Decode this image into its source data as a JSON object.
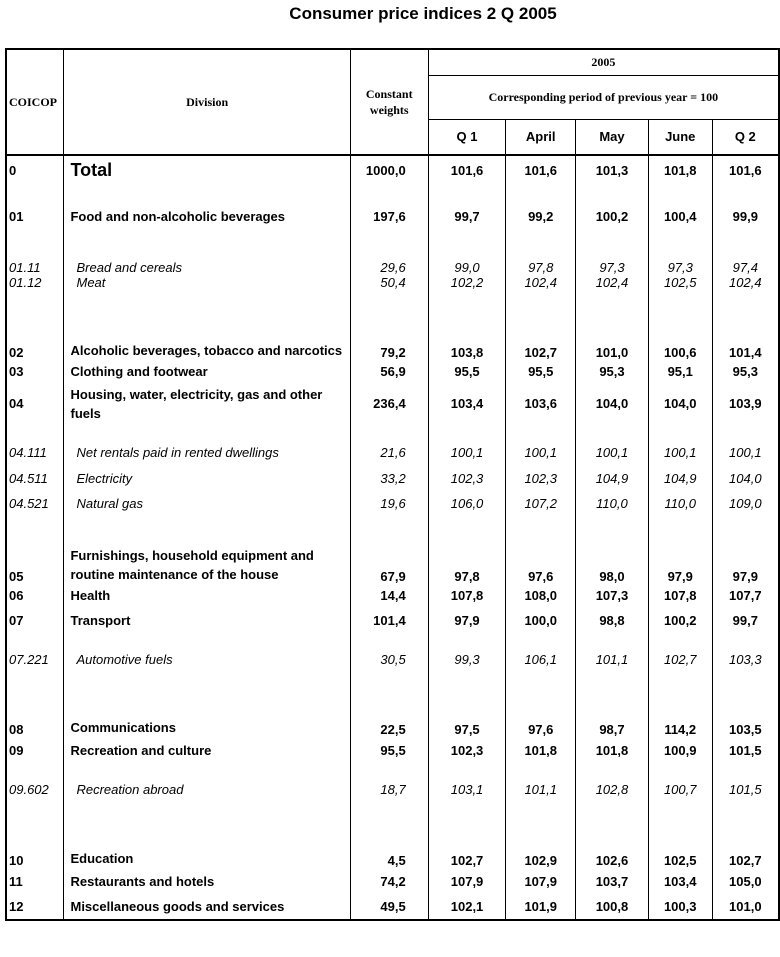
{
  "title": "Consumer price indices 2 Q 2005",
  "header": {
    "coicop": "COICOP",
    "division": "Division",
    "weights": "Constant weights",
    "year": "2005",
    "base": "Corresponding period of previous year = 100",
    "periods": [
      "Q 1",
      "April",
      "May",
      "June",
      "Q 2"
    ]
  },
  "rows": [
    {
      "code": "0",
      "name": "Total",
      "weight": "1000,0",
      "values": [
        "101,6",
        "101,6",
        "101,3",
        "101,8",
        "101,6"
      ]
    },
    {
      "code": "01",
      "name": "Food and non-alcoholic beverages",
      "weight": "197,6",
      "values": [
        "99,7",
        "99,2",
        "100,2",
        "100,4",
        "99,9"
      ]
    },
    {
      "code": "01.11",
      "name": "Bread and cereals",
      "weight": "29,6",
      "values": [
        "99,0",
        "97,8",
        "97,3",
        "97,3",
        "97,4"
      ]
    },
    {
      "code": "01.12",
      "name": "Meat",
      "weight": "50,4",
      "values": [
        "102,2",
        "102,4",
        "102,4",
        "102,5",
        "102,4"
      ]
    },
    {
      "code": "02",
      "name": "Alcoholic beverages, tobacco and narcotics",
      "weight": "79,2",
      "values": [
        "103,8",
        "102,7",
        "101,0",
        "100,6",
        "101,4"
      ]
    },
    {
      "code": "03",
      "name": "Clothing and footwear",
      "weight": "56,9",
      "values": [
        "95,5",
        "95,5",
        "95,3",
        "95,1",
        "95,3"
      ]
    },
    {
      "code": "04",
      "name": "Housing, water, electricity, gas and other fuels",
      "weight": "236,4",
      "values": [
        "103,4",
        "103,6",
        "104,0",
        "104,0",
        "103,9"
      ]
    },
    {
      "code": "04.111",
      "name": "Net rentals paid in rented dwellings",
      "weight": "21,6",
      "values": [
        "100,1",
        "100,1",
        "100,1",
        "100,1",
        "100,1"
      ]
    },
    {
      "code": "04.511",
      "name": "Electricity",
      "weight": "33,2",
      "values": [
        "102,3",
        "102,3",
        "104,9",
        "104,9",
        "104,0"
      ]
    },
    {
      "code": "04.521",
      "name": "Natural gas",
      "weight": "19,6",
      "values": [
        "106,0",
        "107,2",
        "110,0",
        "110,0",
        "109,0"
      ]
    },
    {
      "code": "05",
      "name": "Furnishings, household equipment and routine maintenance of the house",
      "weight": "67,9",
      "values": [
        "97,8",
        "97,6",
        "98,0",
        "97,9",
        "97,9"
      ]
    },
    {
      "code": "06",
      "name": "Health",
      "weight": "14,4",
      "values": [
        "107,8",
        "108,0",
        "107,3",
        "107,8",
        "107,7"
      ]
    },
    {
      "code": "07",
      "name": "Transport",
      "weight": "101,4",
      "values": [
        "97,9",
        "100,0",
        "98,8",
        "100,2",
        "99,7"
      ]
    },
    {
      "code": "07.221",
      "name": "Automotive fuels",
      "weight": "30,5",
      "values": [
        "99,3",
        "106,1",
        "101,1",
        "102,7",
        "103,3"
      ]
    },
    {
      "code": "08",
      "name": "Communications",
      "weight": "22,5",
      "values": [
        "97,5",
        "97,6",
        "98,7",
        "114,2",
        "103,5"
      ]
    },
    {
      "code": "09",
      "name": "Recreation and culture",
      "weight": "95,5",
      "values": [
        "102,3",
        "101,8",
        "101,8",
        "100,9",
        "101,5"
      ]
    },
    {
      "code": "09.602",
      "name": "Recreation abroad",
      "weight": "18,7",
      "values": [
        "103,1",
        "101,1",
        "102,8",
        "100,7",
        "101,5"
      ]
    },
    {
      "code": "10",
      "name": "Education",
      "weight": "4,5",
      "values": [
        "102,7",
        "102,9",
        "102,6",
        "102,5",
        "102,7"
      ]
    },
    {
      "code": "11",
      "name": "Restaurants and hotels",
      "weight": "74,2",
      "values": [
        "107,9",
        "107,9",
        "103,7",
        "103,4",
        "105,0"
      ]
    },
    {
      "code": "12",
      "name": "Miscellaneous goods and services",
      "weight": "49,5",
      "values": [
        "102,1",
        "101,9",
        "100,8",
        "100,3",
        "101,0"
      ]
    }
  ]
}
